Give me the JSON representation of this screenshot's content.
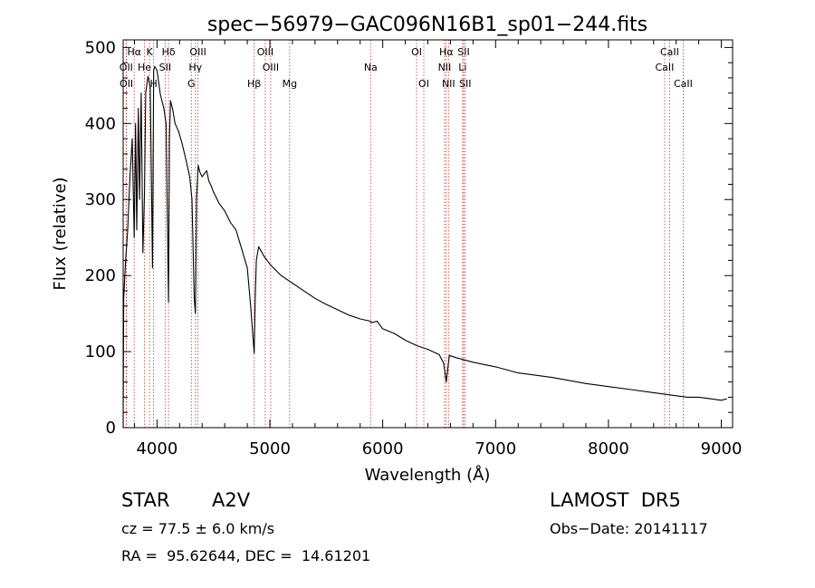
{
  "chart_data": {
    "type": "line",
    "title": "spec−56979−GAC096N16B1_sp01−244.fits",
    "xlabel": "Wavelength (Å)",
    "ylabel": "Flux (relative)",
    "xlim": [
      3700,
      9100
    ],
    "ylim": [
      0,
      510
    ],
    "xticks": [
      4000,
      5000,
      6000,
      7000,
      8000,
      9000
    ],
    "yticks": [
      0,
      100,
      200,
      300,
      400,
      500
    ],
    "grid": false,
    "series": [
      {
        "x": [
          3700,
          3705,
          3720,
          3740,
          3760,
          3780,
          3798,
          3810,
          3820,
          3835,
          3845,
          3860,
          3875,
          3889,
          3900,
          3920,
          3940,
          3960,
          3970,
          3980,
          4000,
          4030,
          4060,
          4080,
          4102,
          4110,
          4120,
          4140,
          4160,
          4190,
          4220,
          4260,
          4290,
          4310,
          4330,
          4340,
          4350,
          4365,
          4380,
          4400,
          4440,
          4460,
          4480,
          4500,
          4550,
          4600,
          4650,
          4700,
          4750,
          4800,
          4830,
          4850,
          4861,
          4870,
          4880,
          4900,
          4950,
          5000,
          5100,
          5200,
          5300,
          5400,
          5500,
          5600,
          5700,
          5800,
          5890,
          5900,
          5950,
          6000,
          6100,
          6200,
          6300,
          6400,
          6500,
          6540,
          6563,
          6590,
          6650,
          6800,
          7000,
          7200,
          7500,
          7800,
          8000,
          8200,
          8400,
          8500,
          8600,
          8700,
          8800,
          8900,
          9000,
          9050
        ],
        "y": [
          0,
          170,
          215,
          260,
          330,
          380,
          250,
          400,
          260,
          420,
          300,
          440,
          230,
          310,
          440,
          462,
          448,
          210,
          470,
          475,
          470,
          438,
          420,
          400,
          165,
          380,
          430,
          418,
          400,
          390,
          375,
          350,
          330,
          300,
          170,
          150,
          300,
          345,
          336,
          330,
          338,
          324,
          318,
          310,
          295,
          285,
          270,
          260,
          235,
          210,
          160,
          120,
          98,
          170,
          220,
          238,
          225,
          215,
          200,
          190,
          180,
          170,
          162,
          155,
          148,
          143,
          140,
          138,
          140,
          130,
          124,
          115,
          108,
          103,
          96,
          85,
          60,
          95,
          92,
          86,
          80,
          72,
          66,
          58,
          54,
          50,
          46,
          44,
          42,
          40,
          40,
          38,
          36,
          38
        ]
      }
    ],
    "line_markers": [
      {
        "name": "Hα",
        "x": 3798,
        "row": 1
      },
      {
        "name": "K",
        "x": 3934,
        "row": 1
      },
      {
        "name": "Hδ",
        "x": 4102,
        "row": 1
      },
      {
        "name": "OIII",
        "x": 4363,
        "row": 1
      },
      {
        "name": "OIII",
        "x": 4959,
        "row": 1
      },
      {
        "name": "OI",
        "x": 6300,
        "row": 1
      },
      {
        "name": "Hα",
        "x": 6563,
        "row": 1
      },
      {
        "name": "SII",
        "x": 6717,
        "row": 1
      },
      {
        "name": "CaII",
        "x": 8542,
        "row": 1
      },
      {
        "name": "OII",
        "x": 3727,
        "row": 2
      },
      {
        "name": "He",
        "x": 3889,
        "row": 2
      },
      {
        "name": "SII",
        "x": 4072,
        "row": 2
      },
      {
        "name": "Hγ",
        "x": 4340,
        "row": 2
      },
      {
        "name": "OIII",
        "x": 5007,
        "row": 2
      },
      {
        "name": "Na",
        "x": 5893,
        "row": 2
      },
      {
        "name": "NII",
        "x": 6548,
        "row": 2
      },
      {
        "name": "Li",
        "x": 6708,
        "row": 2
      },
      {
        "name": "CaII",
        "x": 8498,
        "row": 2
      },
      {
        "name": "OII",
        "x": 3729,
        "row": 3
      },
      {
        "name": "H",
        "x": 3970,
        "row": 3
      },
      {
        "name": "G",
        "x": 4304,
        "row": 3
      },
      {
        "name": "Hβ",
        "x": 4861,
        "row": 3
      },
      {
        "name": "Mg",
        "x": 5175,
        "row": 3
      },
      {
        "name": "OI",
        "x": 6364,
        "row": 3
      },
      {
        "name": "NII",
        "x": 6583,
        "row": 3
      },
      {
        "name": "SII",
        "x": 6731,
        "row": 3
      },
      {
        "name": "CaII",
        "x": 8662,
        "row": 3
      }
    ],
    "marker_color": "#c0392b"
  },
  "info": {
    "object_type": "STAR",
    "subclass": "A2V",
    "survey": "LAMOST  DR5",
    "redshift": "cz = 77.5 ± 6.0 km/s",
    "obs_date": "Obs−Date: 20141117",
    "coords": "RA =  95.62644, DEC =  14.61201"
  }
}
